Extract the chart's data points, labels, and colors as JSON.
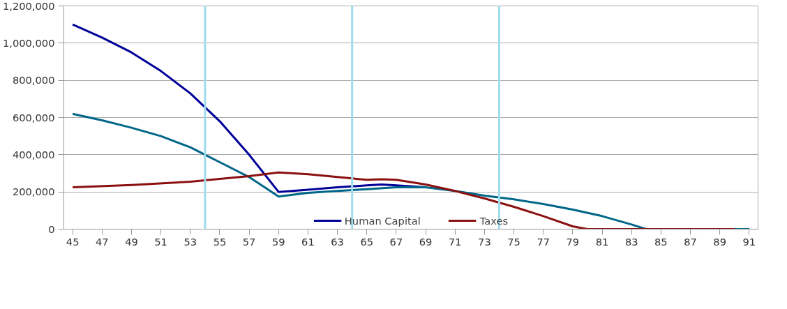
{
  "chart_data": {
    "type": "line",
    "series": [
      {
        "name": "Human Capital",
        "color": "#000099",
        "x": [
          45,
          47,
          49,
          51,
          53,
          54,
          55,
          57,
          59,
          61,
          63,
          65,
          66,
          67,
          69
        ],
        "values": [
          1100000,
          1030000,
          950000,
          850000,
          730000,
          655000,
          580000,
          400000,
          200000,
          212000,
          225000,
          235000,
          240000,
          235000,
          225000
        ]
      },
      {
        "color": "#006688",
        "x": [
          45,
          47,
          49,
          51,
          53,
          54,
          55,
          57,
          59,
          61,
          63,
          65,
          67,
          69,
          71,
          73,
          75,
          77,
          79,
          81,
          83,
          84,
          91
        ],
        "values": [
          620000,
          585000,
          545000,
          500000,
          440000,
          400000,
          360000,
          280000,
          175000,
          195000,
          205000,
          215000,
          225000,
          225000,
          205000,
          180000,
          160000,
          135000,
          105000,
          70000,
          25000,
          0,
          0
        ]
      },
      {
        "name": "Taxes",
        "color": "#8b1010",
        "x": [
          45,
          49,
          53,
          55,
          57,
          59,
          61,
          63,
          65,
          66,
          67,
          69,
          71,
          73,
          75,
          77,
          79,
          80,
          90
        ],
        "values": [
          225000,
          237000,
          255000,
          270000,
          285000,
          305000,
          295000,
          280000,
          265000,
          268000,
          265000,
          240000,
          205000,
          165000,
          120000,
          70000,
          15000,
          0,
          0
        ]
      }
    ],
    "xlim": [
      44.4,
      91.6
    ],
    "xticks": [
      45,
      47,
      49,
      51,
      53,
      55,
      57,
      59,
      61,
      63,
      65,
      67,
      69,
      71,
      73,
      75,
      77,
      79,
      81,
      83,
      85,
      87,
      89,
      91
    ],
    "ylim": [
      0,
      1200000
    ],
    "yticks": [
      0,
      {
        "value": 200000,
        "label": "200,000"
      },
      {
        "value": 400000,
        "label": "400,000"
      },
      {
        "value": 600000,
        "label": "600,000"
      },
      {
        "value": 800000,
        "label": "800,000"
      },
      {
        "value": 1000000,
        "label": "1,000,000"
      },
      {
        "value": 1200000,
        "label": "1,200,000"
      }
    ],
    "ref_lines": [
      {
        "axis": "x",
        "value": 54,
        "color": "#9fdcee"
      },
      {
        "axis": "x",
        "value": 64,
        "color": "#9fdcee"
      },
      {
        "axis": "x",
        "value": 74,
        "color": "#9fdcee"
      }
    ],
    "grid": "y",
    "legend": "bottom",
    "line_style": "solid"
  }
}
